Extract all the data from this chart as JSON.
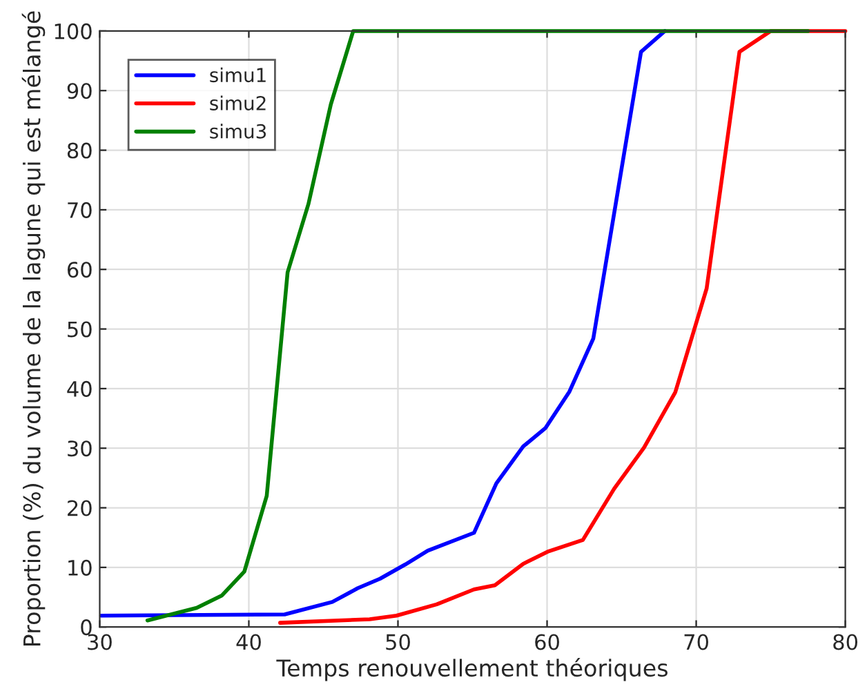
{
  "chart_data": {
    "type": "line",
    "xlabel": "Temps renouvellement théoriques",
    "ylabel": "Proportion (%) du volume de la lagune qui est mélangé",
    "xlim": [
      30,
      80
    ],
    "ylim": [
      0,
      100
    ],
    "xticks": [
      30,
      40,
      50,
      60,
      70,
      80
    ],
    "yticks": [
      0,
      10,
      20,
      30,
      40,
      50,
      60,
      70,
      80,
      90,
      100
    ],
    "grid": true,
    "legend": "top left",
    "line_style": "solid",
    "marker": "none",
    "series": [
      {
        "name": "simu1",
        "color": "#0000ff",
        "x": [
          30.1,
          42.4,
          45.6,
          47.3,
          48.8,
          50.5,
          52,
          55.1,
          56.6,
          58.4,
          59.9,
          61.5,
          63.1,
          66.3,
          67.9
        ],
        "values": [
          1.9,
          2.1,
          4.2,
          6.5,
          8.1,
          10.5,
          12.8,
          15.8,
          24.1,
          30.3,
          33.4,
          39.5,
          48.4,
          96.5,
          100
        ]
      },
      {
        "name": "simu2",
        "color": "#ff0000",
        "x": [
          42.1,
          48.1,
          49.9,
          52.6,
          55.1,
          56.5,
          58.4,
          60.1,
          62.4,
          64.5,
          66.5,
          68.6,
          70.7,
          72.9,
          75,
          80
        ],
        "values": [
          0.7,
          1.3,
          1.9,
          3.8,
          6.3,
          7.0,
          10.6,
          12.7,
          14.6,
          23.2,
          30.1,
          39.4,
          56.8,
          96.5,
          100,
          100
        ]
      },
      {
        "name": "simu3",
        "color": "#008000",
        "x": [
          33.2,
          36.5,
          38.2,
          39.7,
          41.2,
          42.6,
          44.0,
          45.5,
          47.0,
          77.5
        ],
        "values": [
          1.1,
          3.2,
          5.3,
          9.3,
          22,
          59.5,
          71,
          87.7,
          100,
          100
        ]
      }
    ]
  }
}
